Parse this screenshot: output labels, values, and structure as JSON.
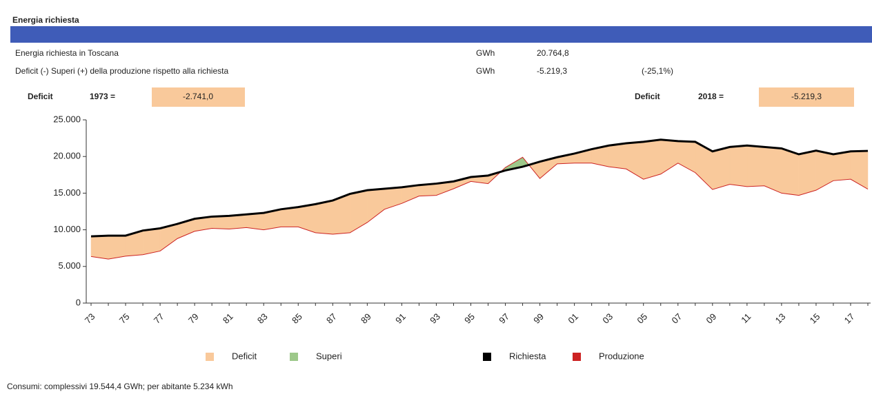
{
  "header": {
    "title": "Energia richiesta"
  },
  "rows": [
    {
      "label": "Energia richiesta in Toscana",
      "unit": "GWh",
      "value": "20.764,8"
    },
    {
      "label": "Deficit (-) Superi (+) della produzione rispetto alla richiesta",
      "unit": "GWh",
      "value": "-5.219,3",
      "percent": "(-25,1%)"
    }
  ],
  "deficit_first": {
    "label": "Deficit",
    "year": "1973 =",
    "value": "-2.741,0"
  },
  "deficit_last": {
    "label": "Deficit",
    "year": "2018 =",
    "value": "-5.219,3"
  },
  "chart_data": {
    "type": "line",
    "categories": [
      "73",
      null,
      "75",
      null,
      "77",
      null,
      "79",
      null,
      "81",
      null,
      "83",
      null,
      "85",
      null,
      "87",
      null,
      "89",
      null,
      "91",
      null,
      "93",
      null,
      "95",
      null,
      "97",
      null,
      "99",
      null,
      "01",
      null,
      "03",
      null,
      "05",
      null,
      "07",
      null,
      "09",
      null,
      "11",
      null,
      "13",
      null,
      "15",
      null,
      "17",
      null
    ],
    "series": [
      {
        "name": "Richiesta",
        "color": "#000000",
        "values": [
          9100,
          9200,
          9200,
          9900,
          10200,
          10800,
          11500,
          11800,
          11900,
          12100,
          12300,
          12800,
          13100,
          13500,
          14000,
          14900,
          15400,
          15600,
          15800,
          16100,
          16300,
          16600,
          17200,
          17400,
          18100,
          18600,
          19300,
          19900,
          20400,
          21000,
          21500,
          21800,
          22000,
          22300,
          22100,
          22000,
          20700,
          21300,
          21500,
          21300,
          21100,
          20300,
          20800,
          20300,
          20700,
          20764.8
        ]
      },
      {
        "name": "Produzione",
        "color": "#cc2222",
        "values": [
          6359,
          6000,
          6400,
          6600,
          7100,
          8800,
          9800,
          10200,
          10100,
          10300,
          10000,
          10400,
          10400,
          9600,
          9400,
          9600,
          11000,
          12800,
          13600,
          14600,
          14700,
          15600,
          16600,
          16300,
          18500,
          19900,
          17000,
          19000,
          19100,
          19100,
          18600,
          18300,
          16900,
          17600,
          19100,
          17800,
          15500,
          16200,
          15900,
          16000,
          15000,
          14700,
          15400,
          16700,
          16900,
          15545.5
        ]
      }
    ],
    "areas": [
      {
        "name": "Deficit",
        "color": "#f9c99b"
      },
      {
        "name": "Superi",
        "color": "#9dc88a"
      }
    ],
    "ylim": [
      0,
      25000
    ],
    "yticks": [
      0,
      {
        "value": 5000,
        "label": "5.000"
      },
      {
        "value": 10000,
        "label": "10.000"
      },
      {
        "value": 15000,
        "label": "15.000"
      },
      {
        "value": 20000,
        "label": "20.000"
      },
      {
        "value": 25000,
        "label": "25.000"
      }
    ]
  },
  "footer": "Consumi: complessivi 19.544,4 GWh; per abitante 5.234 kWh"
}
